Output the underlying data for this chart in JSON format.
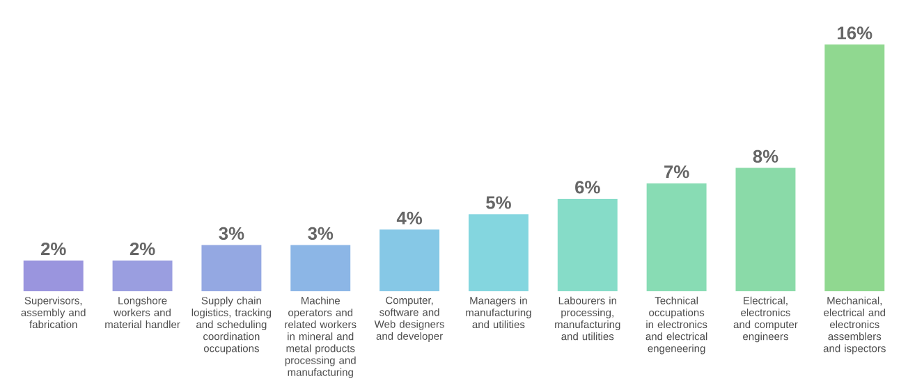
{
  "chart_data": {
    "type": "bar",
    "categories": [
      "Supervisors, assembly and fabrication",
      "Longshore workers and material handler",
      "Supply chain logistics, tracking and scheduling coordination occupations",
      "Machine operators and related workers in mineral and metal products processing and manufacturing",
      "Computer, software and Web designers and developer",
      "Managers in manufacturing and utilities",
      "Labourers in processing, manufacturing and utilities",
      "Technical occupations in electronics and electrical engeneering",
      "Electrical, electronics and computer engineers",
      "Mechanical, electrical and electronics assemblers and ispectors"
    ],
    "values": [
      2,
      2,
      3,
      3,
      4,
      5,
      6,
      7,
      8,
      16
    ],
    "value_labels": [
      "2%",
      "2%",
      "3%",
      "3%",
      "4%",
      "5%",
      "6%",
      "7%",
      "8%",
      "16%"
    ],
    "colors": [
      "#9a95de",
      "#9a9ee0",
      "#94a8e2",
      "#8cb6e6",
      "#86c8e6",
      "#84d6df",
      "#86dcc8",
      "#88dcb4",
      "#8adaa8",
      "#90d890"
    ]
  }
}
